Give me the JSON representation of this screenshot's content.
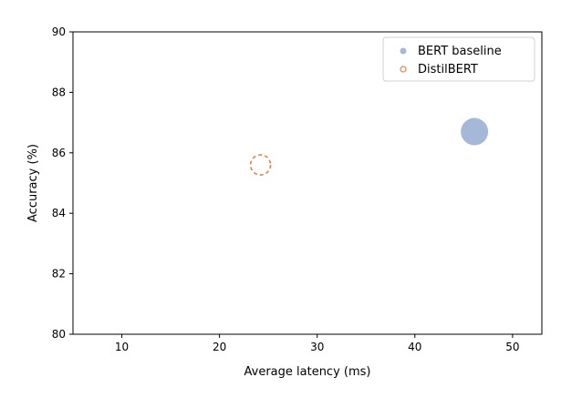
{
  "chart_data": {
    "type": "scatter",
    "xlabel": "Average latency (ms)",
    "ylabel": "Accuracy (%)",
    "xlim": [
      5,
      53
    ],
    "ylim": [
      80,
      90
    ],
    "xticks": [
      10,
      20,
      30,
      40,
      50
    ],
    "yticks": [
      80,
      82,
      84,
      86,
      88,
      90
    ],
    "grid": false,
    "legend_position": "top-right",
    "series": [
      {
        "name": "BERT baseline",
        "x": [
          46.1
        ],
        "y": [
          86.7
        ],
        "color": "#4c72b0",
        "marker": "filled-circle",
        "alpha": 0.5
      },
      {
        "name": "DistilBERT",
        "x": [
          24.2
        ],
        "y": [
          85.6
        ],
        "color": "#dd8452",
        "marker": "dashed-hollow-circle",
        "alpha": 1.0
      }
    ]
  }
}
